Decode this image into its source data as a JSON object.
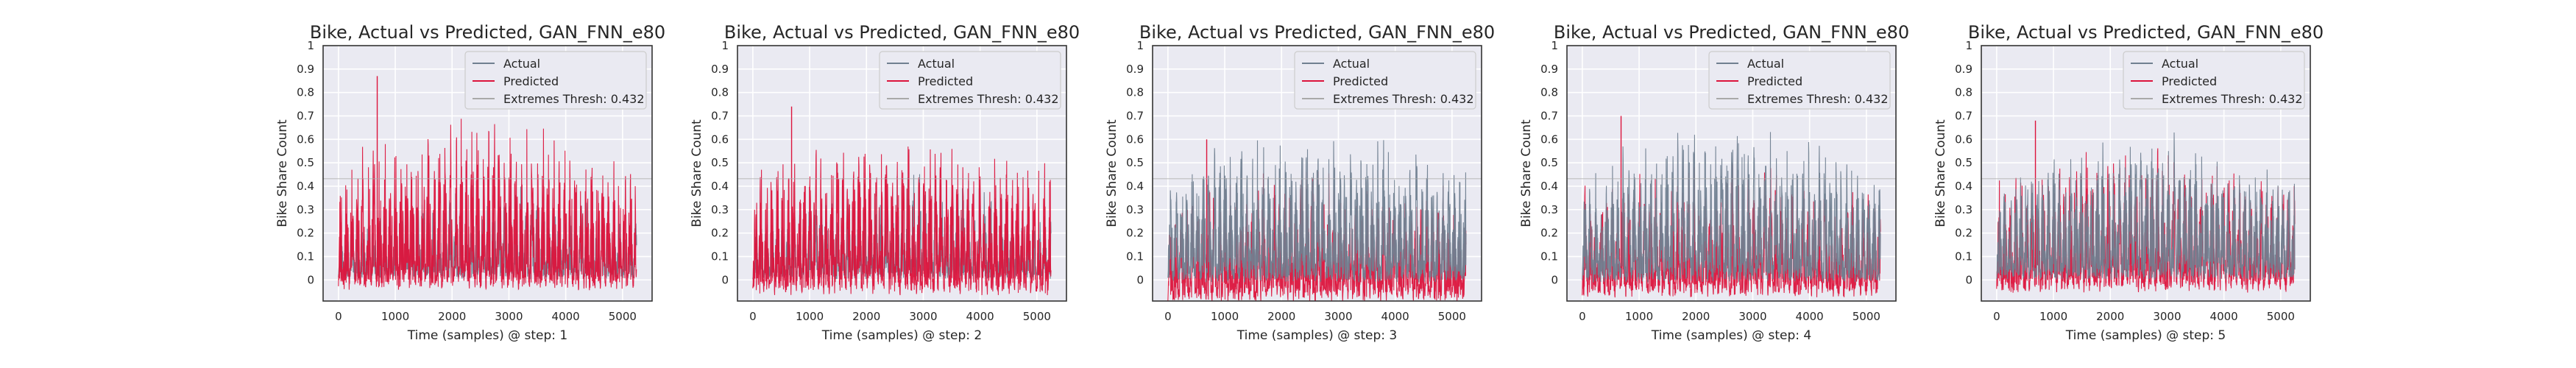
{
  "colors": {
    "actual": "#708090",
    "predicted": "#dc143c",
    "threshold": "#a9a9a9",
    "background": "#eaeaf2",
    "grid": "#ffffff"
  },
  "chart_data": [
    {
      "type": "line",
      "title": "Bike, Actual vs Predicted, GAN_FNN_e80",
      "xlabel": "Time (samples) @ step: 1",
      "ylabel": "Bike Share Count",
      "xlim": [
        -270,
        5520
      ],
      "ylim": [
        -0.09,
        1.0
      ],
      "xticks": [
        0,
        1000,
        2000,
        3000,
        4000,
        5000
      ],
      "yticks": [
        0.0,
        0.1,
        0.2,
        0.3,
        0.4,
        0.5,
        0.6,
        0.7,
        0.8,
        0.9,
        1.0
      ],
      "legend_position": "top-right",
      "threshold": 0.432,
      "series": [
        {
          "name": "Actual",
          "n_samples": 5250,
          "approx_min": 0.01,
          "approx_peak": 0.44,
          "daily_peaks": [
            0.28,
            0.3,
            0.33,
            0.36,
            0.38,
            0.4,
            0.42,
            0.43,
            0.44,
            0.42,
            0.4,
            0.38,
            0.36,
            0.33,
            0.3
          ]
        },
        {
          "name": "Predicted",
          "n_samples": 5250,
          "approx_min": -0.02,
          "approx_peak": 0.87,
          "daily_peaks": [
            0.5,
            0.6,
            0.65,
            0.66,
            0.68,
            0.7,
            0.72,
            0.72,
            0.7,
            0.68,
            0.66,
            0.64,
            0.6,
            0.58,
            0.52
          ]
        },
        {
          "name": "Extremes Thresh: 0.432",
          "value": 0.432
        }
      ]
    },
    {
      "type": "line",
      "title": "Bike, Actual vs Predicted, GAN_FNN_e80",
      "xlabel": "Time (samples) @ step: 2",
      "ylabel": "Bike Share Count",
      "xlim": [
        -270,
        5520
      ],
      "ylim": [
        -0.09,
        1.0
      ],
      "xticks": [
        0,
        1000,
        2000,
        3000,
        4000,
        5000
      ],
      "yticks": [
        0.0,
        0.1,
        0.2,
        0.3,
        0.4,
        0.5,
        0.6,
        0.7,
        0.8,
        0.9,
        1.0
      ],
      "legend_position": "top-right",
      "threshold": 0.432,
      "series": [
        {
          "name": "Actual",
          "n_samples": 5250,
          "approx_min": 0.01,
          "approx_peak": 0.5,
          "daily_peaks": [
            0.3,
            0.34,
            0.38,
            0.4,
            0.42,
            0.44,
            0.46,
            0.48,
            0.5,
            0.48,
            0.46,
            0.44,
            0.4,
            0.36,
            0.32
          ]
        },
        {
          "name": "Predicted",
          "n_samples": 5250,
          "approx_min": -0.04,
          "approx_peak": 0.74,
          "daily_peaks": [
            0.48,
            0.56,
            0.6,
            0.62,
            0.64,
            0.65,
            0.66,
            0.66,
            0.65,
            0.64,
            0.62,
            0.6,
            0.58,
            0.56,
            0.5
          ]
        },
        {
          "name": "Extremes Thresh: 0.432",
          "value": 0.432
        }
      ]
    },
    {
      "type": "line",
      "title": "Bike, Actual vs Predicted, GAN_FNN_e80",
      "xlabel": "Time (samples) @ step: 3",
      "ylabel": "Bike Share Count",
      "xlim": [
        -270,
        5520
      ],
      "ylim": [
        -0.09,
        1.0
      ],
      "xticks": [
        0,
        1000,
        2000,
        3000,
        4000,
        5000
      ],
      "yticks": [
        0.0,
        0.1,
        0.2,
        0.3,
        0.4,
        0.5,
        0.6,
        0.7,
        0.8,
        0.9,
        1.0
      ],
      "legend_position": "top-right",
      "threshold": 0.432,
      "series": [
        {
          "name": "Actual",
          "n_samples": 5250,
          "approx_min": 0.0,
          "approx_peak": 0.66,
          "daily_peaks": [
            0.5,
            0.56,
            0.6,
            0.62,
            0.64,
            0.65,
            0.66,
            0.66,
            0.65,
            0.64,
            0.62,
            0.6,
            0.57,
            0.54,
            0.5
          ]
        },
        {
          "name": "Predicted",
          "n_samples": 5250,
          "approx_min": -0.07,
          "approx_peak": 0.6,
          "daily_peaks": [
            0.38,
            0.42,
            0.44,
            0.46,
            0.48,
            0.49,
            0.5,
            0.5,
            0.49,
            0.48,
            0.46,
            0.44,
            0.42,
            0.4,
            0.38
          ]
        },
        {
          "name": "Extremes Thresh: 0.432",
          "value": 0.432
        }
      ]
    },
    {
      "type": "line",
      "title": "Bike, Actual vs Predicted, GAN_FNN_e80",
      "xlabel": "Time (samples) @ step: 4",
      "ylabel": "Bike Share Count",
      "xlim": [
        -270,
        5520
      ],
      "ylim": [
        -0.09,
        1.0
      ],
      "xticks": [
        0,
        1000,
        2000,
        3000,
        4000,
        5000
      ],
      "yticks": [
        0.0,
        0.1,
        0.2,
        0.3,
        0.4,
        0.5,
        0.6,
        0.7,
        0.8,
        0.9,
        1.0
      ],
      "legend_position": "top-right",
      "threshold": 0.432,
      "series": [
        {
          "name": "Actual",
          "n_samples": 5250,
          "approx_min": 0.0,
          "approx_peak": 0.69,
          "daily_peaks": [
            0.5,
            0.56,
            0.6,
            0.63,
            0.65,
            0.67,
            0.68,
            0.69,
            0.68,
            0.66,
            0.64,
            0.62,
            0.58,
            0.55,
            0.5
          ]
        },
        {
          "name": "Predicted",
          "n_samples": 5250,
          "approx_min": -0.05,
          "approx_peak": 0.7,
          "daily_peaks": [
            0.4,
            0.44,
            0.46,
            0.48,
            0.5,
            0.51,
            0.52,
            0.52,
            0.51,
            0.5,
            0.48,
            0.46,
            0.44,
            0.42,
            0.4
          ]
        },
        {
          "name": "Extremes Thresh: 0.432",
          "value": 0.432
        }
      ]
    },
    {
      "type": "line",
      "title": "Bike, Actual vs Predicted, GAN_FNN_e80",
      "xlabel": "Time (samples) @ step: 5",
      "ylabel": "Bike Share Count",
      "xlim": [
        -270,
        5520
      ],
      "ylim": [
        -0.09,
        1.0
      ],
      "xticks": [
        0,
        1000,
        2000,
        3000,
        4000,
        5000
      ],
      "yticks": [
        0.0,
        0.1,
        0.2,
        0.3,
        0.4,
        0.5,
        0.6,
        0.7,
        0.8,
        0.9,
        1.0
      ],
      "legend_position": "top-right",
      "threshold": 0.432,
      "series": [
        {
          "name": "Actual",
          "n_samples": 5250,
          "approx_min": 0.01,
          "approx_peak": 0.68,
          "daily_peaks": [
            0.46,
            0.52,
            0.56,
            0.6,
            0.62,
            0.64,
            0.66,
            0.68,
            0.66,
            0.64,
            0.62,
            0.58,
            0.55,
            0.52,
            0.48
          ]
        },
        {
          "name": "Predicted",
          "n_samples": 5250,
          "approx_min": -0.03,
          "approx_peak": 0.68,
          "daily_peaks": [
            0.44,
            0.5,
            0.54,
            0.56,
            0.58,
            0.6,
            0.62,
            0.62,
            0.6,
            0.58,
            0.56,
            0.54,
            0.52,
            0.5,
            0.46
          ]
        },
        {
          "name": "Extremes Thresh: 0.432",
          "value": 0.432
        }
      ]
    }
  ]
}
